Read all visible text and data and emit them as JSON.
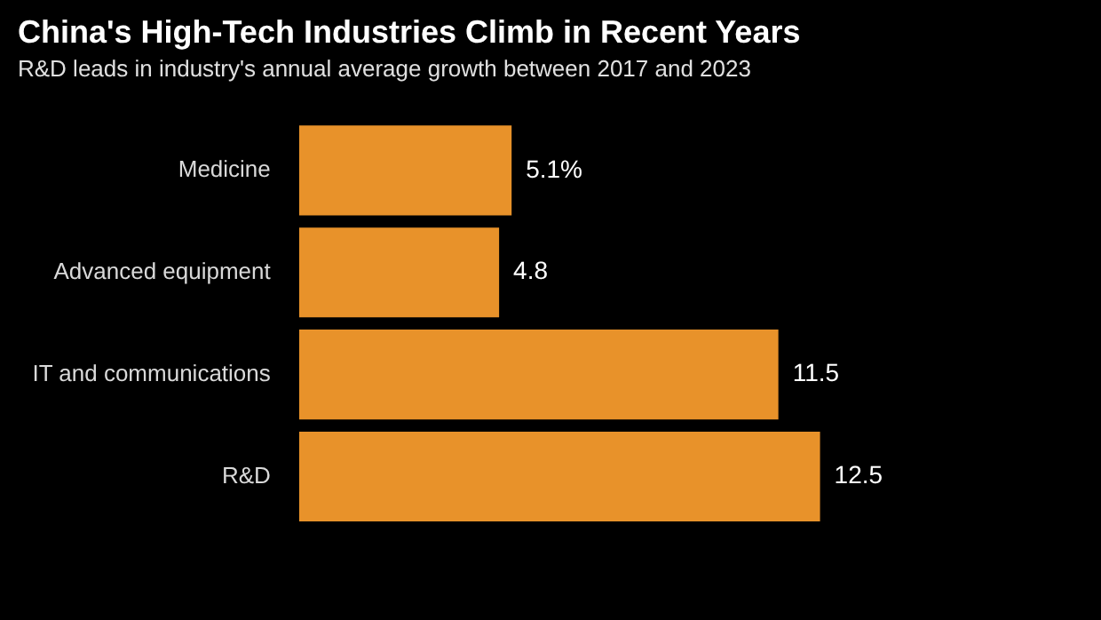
{
  "chart_data": {
    "type": "bar",
    "orientation": "horizontal",
    "title": "China's High-Tech Industries Climb in Recent Years",
    "subtitle": "R&D leads in industry's annual average growth between 2017 and 2023",
    "categories": [
      "Medicine",
      "Advanced equipment",
      "IT and communications",
      "R&D"
    ],
    "values": [
      5.1,
      4.8,
      11.5,
      12.5
    ],
    "value_labels": [
      "5.1%",
      "4.8",
      "11.5",
      "12.5"
    ],
    "color": "#e8922a"
  }
}
